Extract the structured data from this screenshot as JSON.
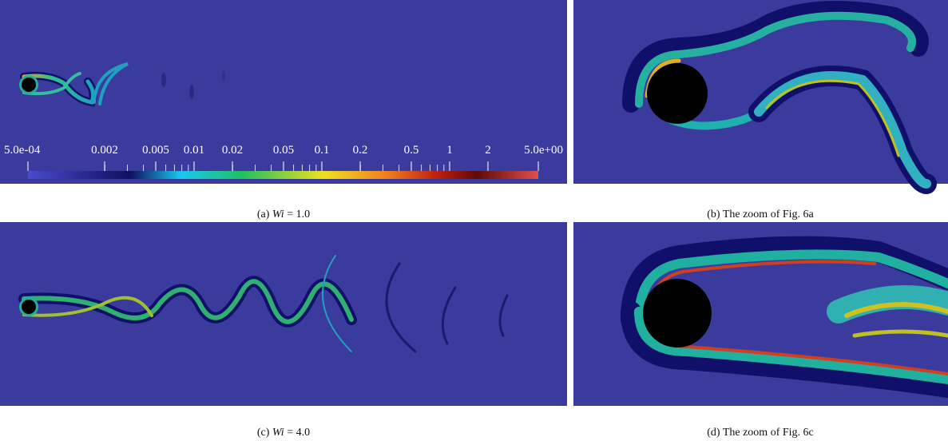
{
  "panels": [
    {
      "caption": {
        "tag": "(a)",
        "variable": "Wi",
        "rest": "= 1.0"
      }
    },
    {
      "caption": {
        "tag": "(b)",
        "text": "The zoom of Fig. 6a"
      }
    },
    {
      "caption": {
        "tag": "(c)",
        "variable": "Wi",
        "rest": "= 4.0"
      }
    },
    {
      "caption": {
        "tag": "(d)",
        "text": "The zoom of Fig. 6c"
      }
    }
  ],
  "colorbar": {
    "labels": [
      "5.0e-04",
      "0.002",
      "0.005",
      "0.01",
      "0.02",
      "0.05",
      "0.1",
      "0.2",
      "0.5",
      "1",
      "2",
      "5.0e+00"
    ]
  }
}
